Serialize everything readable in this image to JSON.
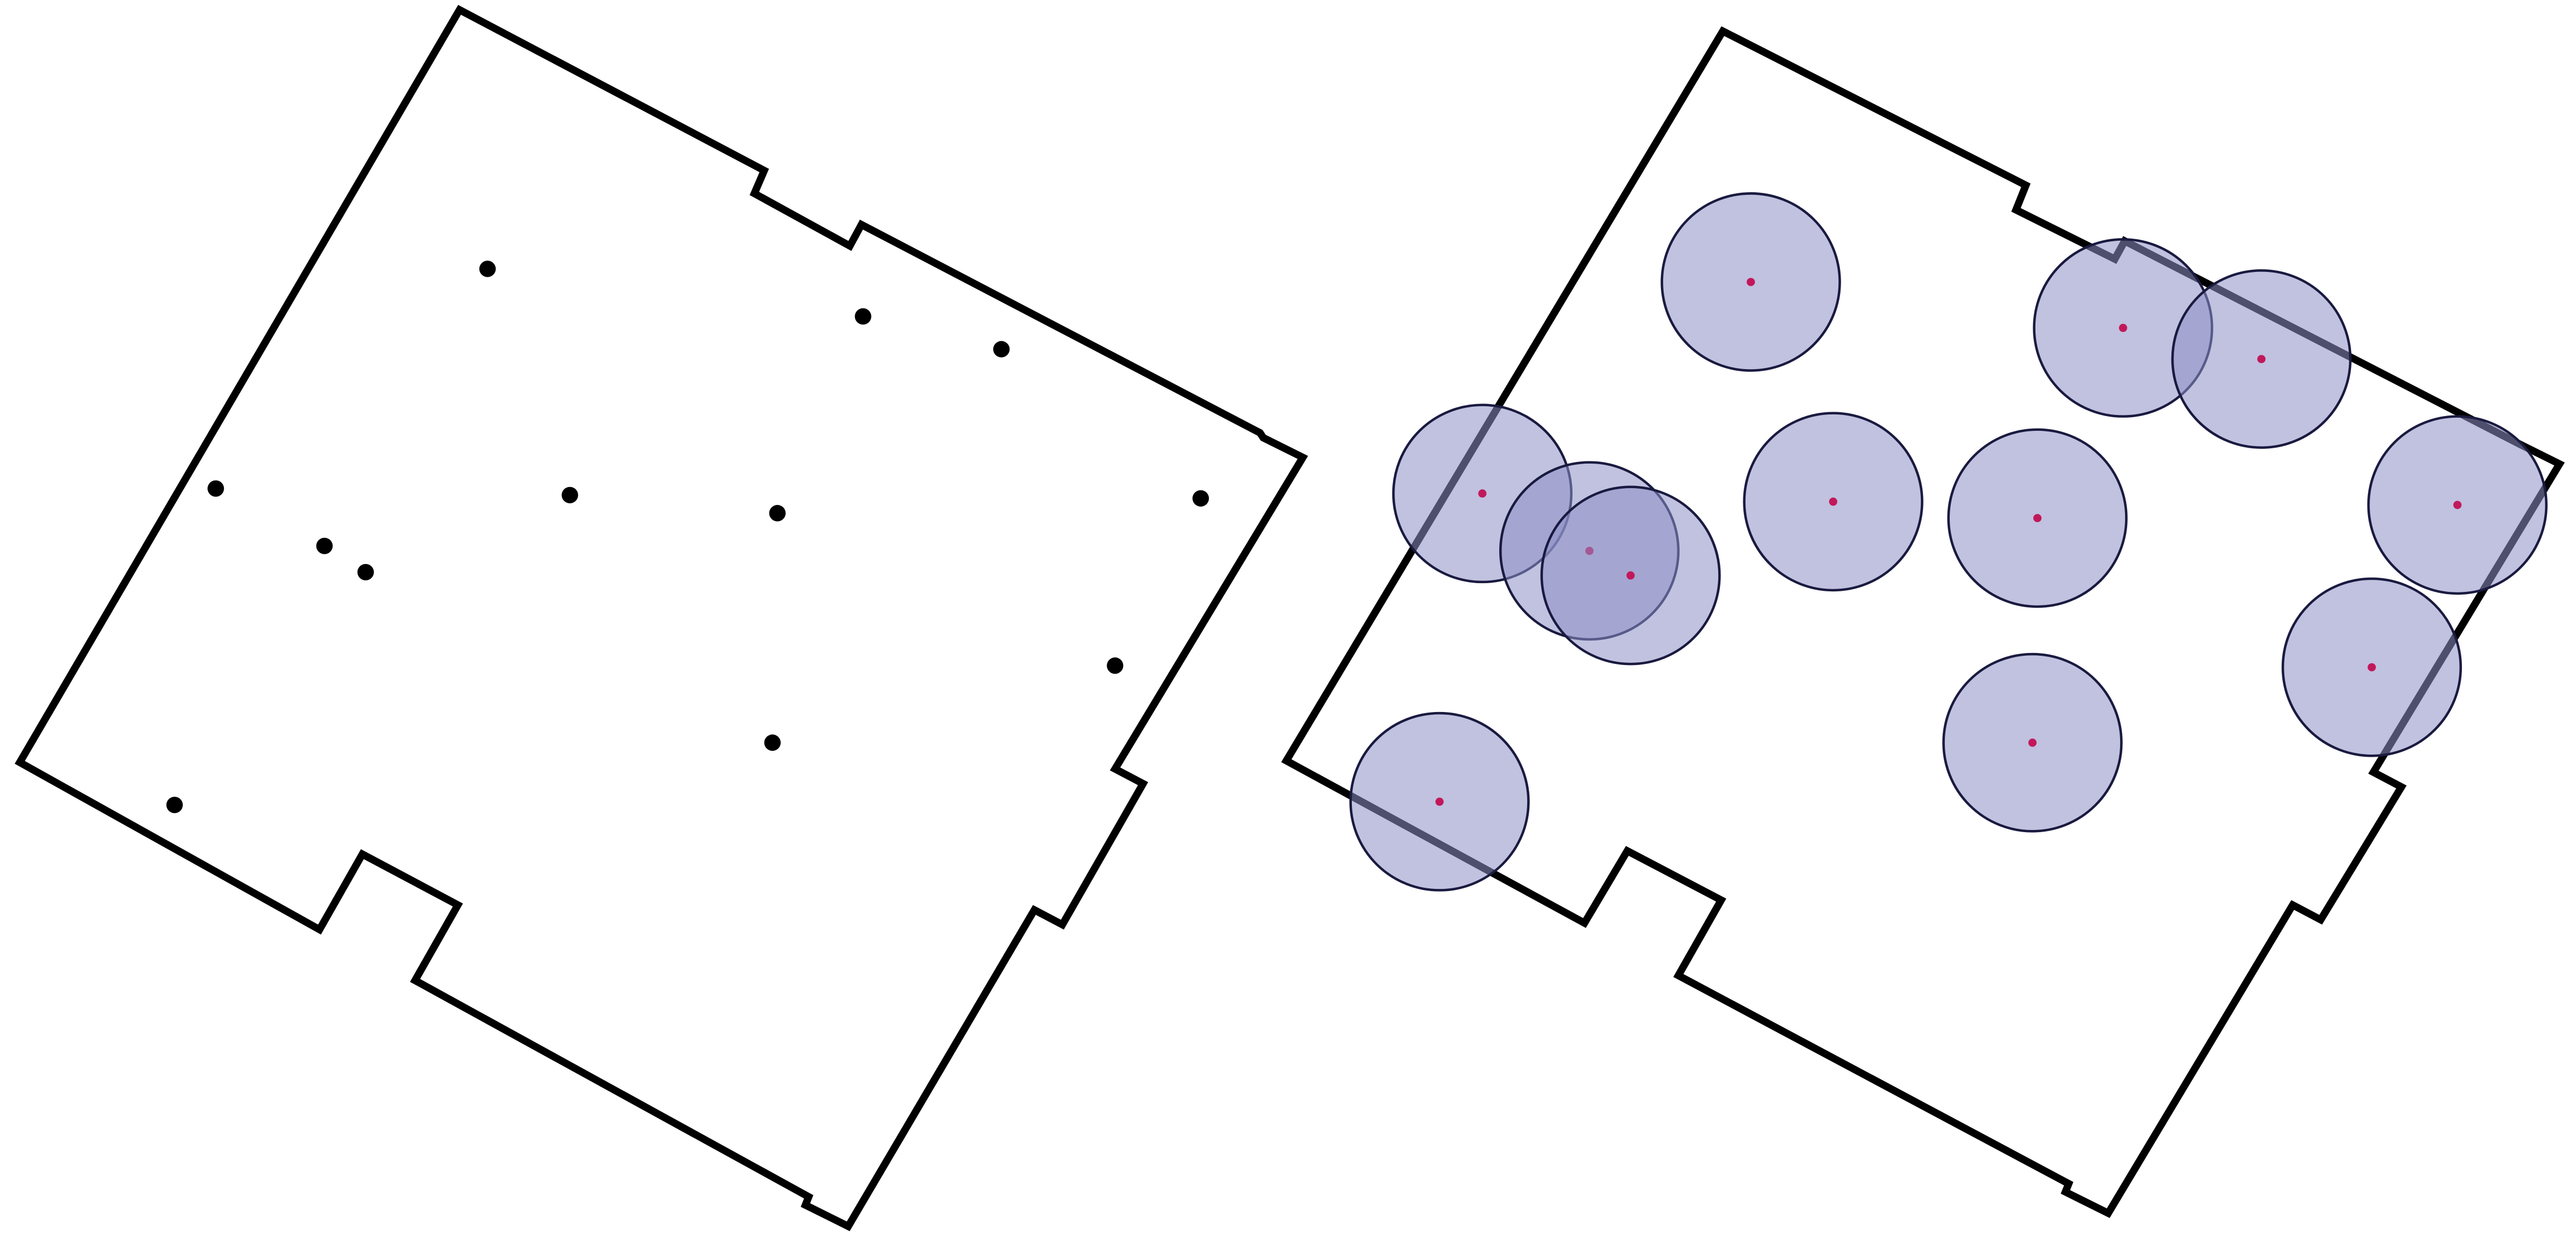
{
  "colors": {
    "background": "#ffffff",
    "boundary_stroke": "#000000",
    "point_fill": "#000000",
    "center_fill": "#c2185b",
    "buffer_fill": "#8c8fc4",
    "buffer_fill_opacity": 0.55,
    "buffer_stroke": "#1a1a40"
  },
  "panels": [
    {
      "name": "points-panel",
      "layer": "site-points",
      "point_count": 12
    },
    {
      "name": "buffers-panel",
      "layer": "point-buffers",
      "buffer_count": 12,
      "buffers_overlap": true
    }
  ]
}
